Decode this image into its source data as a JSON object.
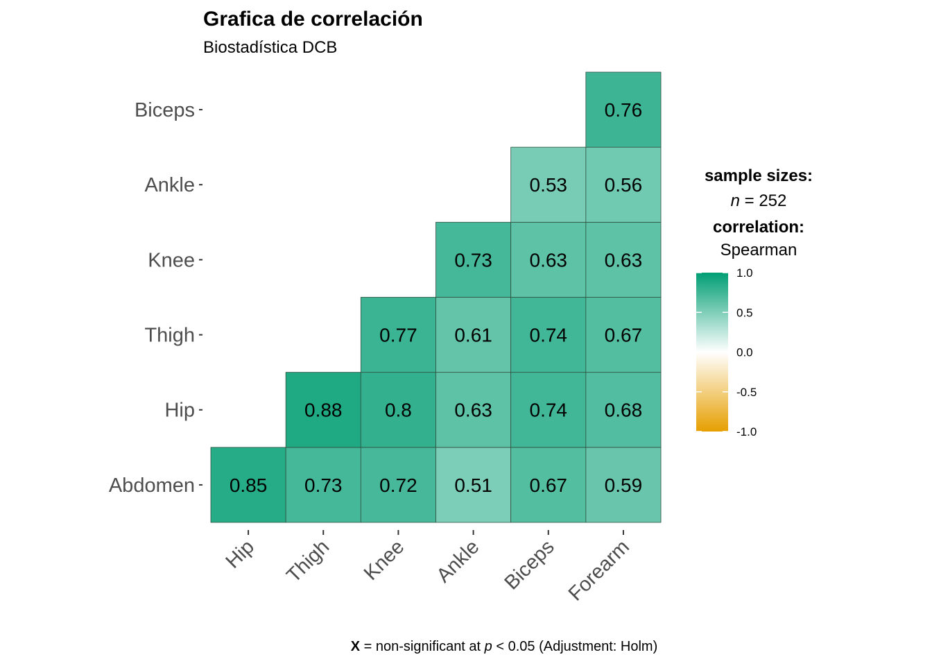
{
  "chart_data": {
    "type": "heatmap",
    "title": "Grafica de correlación",
    "subtitle": "Biostadística DCB",
    "x_categories": [
      "Hip",
      "Thigh",
      "Knee",
      "Ankle",
      "Biceps",
      "Forearm"
    ],
    "y_categories": [
      "Abdomen",
      "Hip",
      "Thigh",
      "Knee",
      "Ankle",
      "Biceps"
    ],
    "matrix": [
      [
        0.85,
        0.73,
        0.72,
        0.51,
        0.67,
        0.59
      ],
      [
        null,
        0.88,
        0.8,
        0.63,
        0.74,
        0.68
      ],
      [
        null,
        null,
        0.77,
        0.61,
        0.74,
        0.67
      ],
      [
        null,
        null,
        null,
        0.73,
        0.63,
        0.63
      ],
      [
        null,
        null,
        null,
        null,
        0.53,
        0.56
      ],
      [
        null,
        null,
        null,
        null,
        null,
        0.76
      ]
    ],
    "color_scale": {
      "low": "#E69F00",
      "mid": "#FFFFFF",
      "high": "#009E73",
      "domain": [
        -1,
        1
      ],
      "ticks": [
        "1.0",
        "0.5",
        "0.0",
        "-0.5",
        "-1.0"
      ]
    },
    "legend": {
      "sample_sizes_label": "sample sizes:",
      "n_symbol": "n",
      "n_value": " = 252",
      "correlation_label": "correlation:",
      "correlation_method": "Spearman"
    },
    "caption": {
      "symbol": "X",
      "text1": " = non-significant at ",
      "p_symbol": "p",
      "text2": " < 0.05 (Adjustment: Holm)"
    }
  }
}
